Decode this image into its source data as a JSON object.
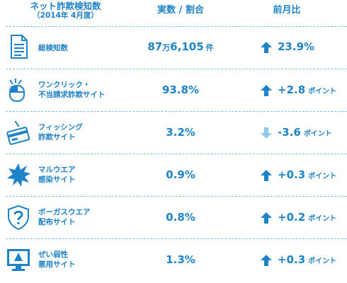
{
  "header": {
    "title": "ネット詐欺検知数",
    "subtitle": "（2014年 4月度）",
    "value_col": "実数 / 割合",
    "change_col": "前月比"
  },
  "colors": {
    "accent": "#1e82c8",
    "up": "#1e82c8",
    "down": "#8fc8ea"
  },
  "rows": [
    {
      "label": [
        "総検知数"
      ],
      "value_big": "87",
      "value_small": "万",
      "value_rest": "6,105",
      "value_unit": "件",
      "direction": "up",
      "change": "23.9%",
      "change_unit": "",
      "icon": "document-icon"
    },
    {
      "label": [
        "ワンクリック・",
        "不当請求詐欺サイト"
      ],
      "value": "93.8%",
      "direction": "up",
      "change": "+2.8",
      "change_unit": "ポイント",
      "icon": "mouse-click-icon"
    },
    {
      "label": [
        "フィッシング",
        "詐欺サイト"
      ],
      "value": "3.2%",
      "direction": "down",
      "change": "-3.6",
      "change_unit": "ポイント",
      "icon": "fishing-card-icon"
    },
    {
      "label": [
        "マルウエア",
        "感染サイト"
      ],
      "value": "0.9%",
      "direction": "up",
      "change": "+0.3",
      "change_unit": "ポイント",
      "icon": "burst-icon"
    },
    {
      "label": [
        "ボーガスウエア",
        "配布サイト"
      ],
      "value": "0.8%",
      "direction": "up",
      "change": "+0.2",
      "change_unit": "ポイント",
      "icon": "shield-question-icon"
    },
    {
      "label": [
        "ぜい弱性",
        "悪用サイト"
      ],
      "value": "1.3%",
      "direction": "up",
      "change": "+0.3",
      "change_unit": "ポイント",
      "icon": "monitor-warning-icon"
    }
  ]
}
